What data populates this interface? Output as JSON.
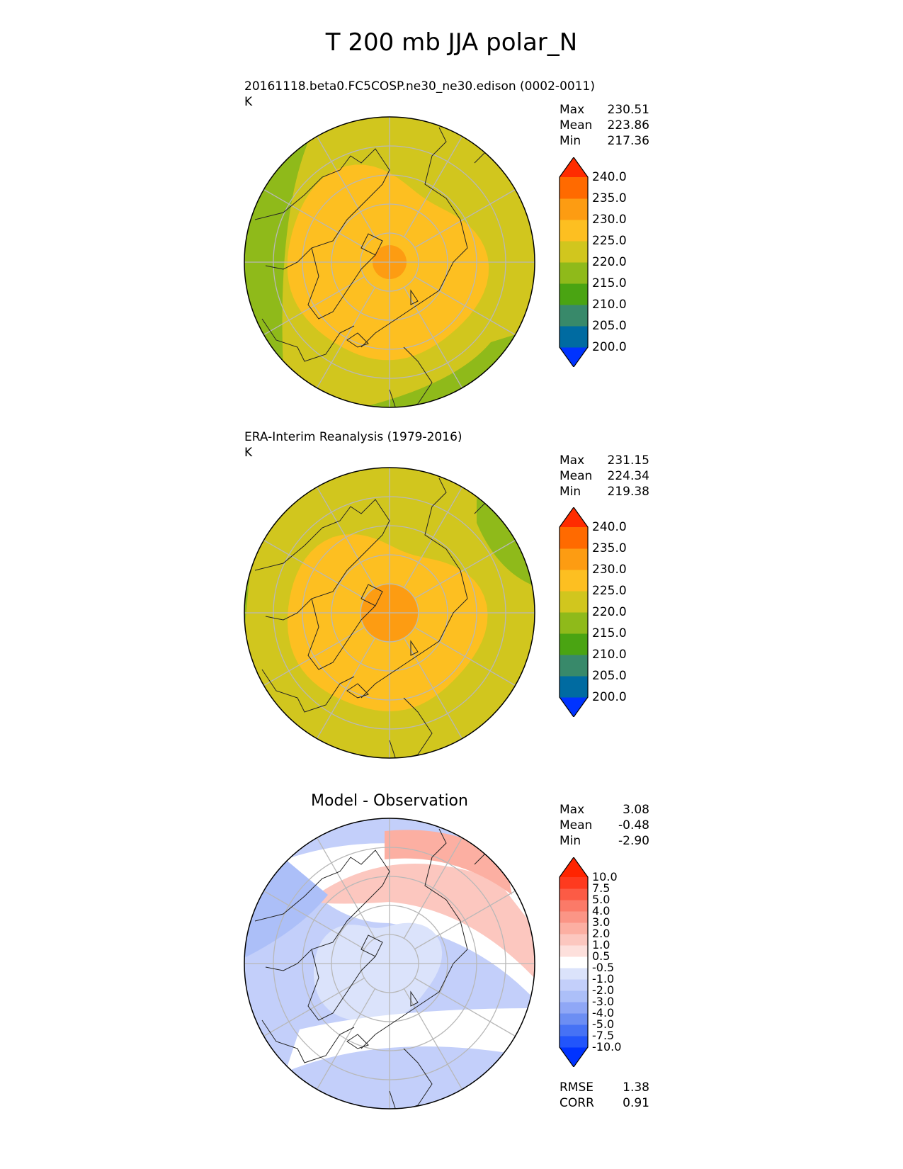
{
  "title": "T 200 mb JJA polar_N",
  "panels": [
    {
      "title": "20161118.beta0.FC5COSP.ne30_ne30.edison (0002-0011)",
      "units": "K",
      "stats": [
        {
          "label": "Max",
          "value": "230.51"
        },
        {
          "label": "Mean",
          "value": "223.86"
        },
        {
          "label": "Min",
          "value": "217.36"
        }
      ],
      "colorbar": {
        "ticks": [
          "240.0",
          "235.0",
          "230.0",
          "225.0",
          "220.0",
          "215.0",
          "210.0",
          "205.0",
          "200.0"
        ],
        "colors": [
          "#0033ff",
          "#006ba1",
          "#38896a",
          "#4aa412",
          "#8fba1a",
          "#d1c61e",
          "#fdbf21",
          "#fd9c12",
          "#ff6a00",
          "#ff2c00"
        ]
      },
      "field": {
        "low": "#8fba1a",
        "mid": "#d1c61e",
        "warm": "#fdbf21",
        "hot": "#fd9c12"
      }
    },
    {
      "title": "ERA-Interim Reanalysis (1979-2016)",
      "units": "K",
      "stats": [
        {
          "label": "Max",
          "value": "231.15"
        },
        {
          "label": "Mean",
          "value": "224.34"
        },
        {
          "label": "Min",
          "value": "219.38"
        }
      ],
      "colorbar": {
        "ticks": [
          "240.0",
          "235.0",
          "230.0",
          "225.0",
          "220.0",
          "215.0",
          "210.0",
          "205.0",
          "200.0"
        ],
        "colors": [
          "#0033ff",
          "#006ba1",
          "#38896a",
          "#4aa412",
          "#8fba1a",
          "#d1c61e",
          "#fdbf21",
          "#fd9c12",
          "#ff6a00",
          "#ff2c00"
        ]
      },
      "field": {
        "low": "#8fba1a",
        "mid": "#d1c61e",
        "warm": "#fdbf21",
        "hot": "#fd9c12"
      }
    },
    {
      "title": "Model - Observation",
      "stats": [
        {
          "label": "Max",
          "value": "3.08"
        },
        {
          "label": "Mean",
          "value": "-0.48"
        },
        {
          "label": "Min",
          "value": "-2.90"
        }
      ],
      "colorbar": {
        "ticks": [
          "10.0",
          "7.5",
          "5.0",
          "4.0",
          "3.0",
          "2.0",
          "1.0",
          "0.5",
          "-0.5",
          "-1.0",
          "-2.0",
          "-3.0",
          "-4.0",
          "-5.0",
          "-7.5",
          "-10.0"
        ],
        "colors": [
          "#0033ff",
          "#2255fb",
          "#4672f5",
          "#6c8ef3",
          "#8fa7f6",
          "#acbff8",
          "#c3cffa",
          "#dbe3fb",
          "#ffffff",
          "#fde0dc",
          "#fcc7bf",
          "#fcafa2",
          "#fb9586",
          "#fb7a68",
          "#fc5b45",
          "#fe3a1f",
          "#ff2400"
        ]
      },
      "field": {
        "low": "#c3cffa",
        "mid": "#dbe3fb",
        "warm": "#fcc7bf",
        "hot": "#fcafa2",
        "cold": "#acbff8"
      },
      "extra_stats": [
        {
          "label": "RMSE",
          "value": "1.38"
        },
        {
          "label": "CORR",
          "value": "0.91"
        }
      ]
    }
  ]
}
